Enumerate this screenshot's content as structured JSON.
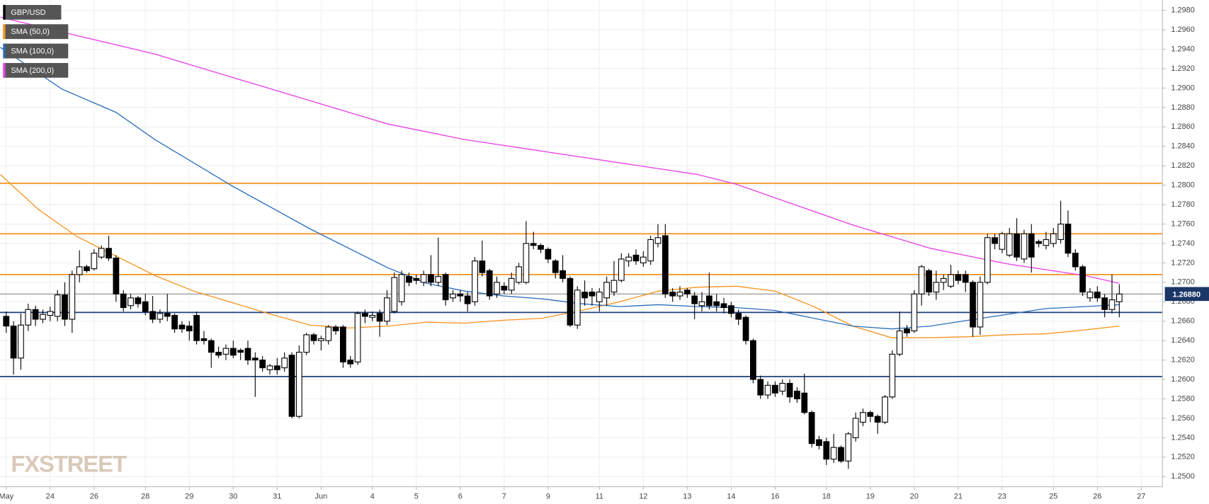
{
  "chart_data": {
    "type": "candlestick",
    "series_name": "GBP/USD",
    "up_color": "#ffffff",
    "down_color": "#000000",
    "open": [
      1.2665,
      1.2655,
      1.2622,
      1.2656,
      1.2672,
      1.2662,
      1.2666,
      1.2665,
      1.2687,
      1.2662,
      1.2708,
      1.2716,
      1.2714,
      1.2726,
      1.2735,
      1.2725,
      1.2688,
      1.2676,
      1.2684,
      1.268,
      1.267,
      1.2662,
      1.2668,
      1.2666,
      1.2656,
      1.2655,
      1.2666,
      1.2642,
      1.264,
      1.2628,
      1.2626,
      1.2632,
      1.263,
      1.2632,
      1.2622,
      1.262,
      1.261,
      1.2614,
      1.2612,
      1.2625,
      1.2562,
      1.2628,
      1.2646,
      1.264,
      1.264,
      1.2654,
      1.2654,
      1.262,
      1.2618,
      1.2668,
      1.2664,
      1.2668,
      1.266,
      1.267,
      1.268,
      1.2706,
      1.2704,
      1.27,
      1.2708,
      1.27,
      1.2708,
      1.2684,
      1.2688,
      1.2686,
      1.268,
      1.2722,
      1.2712,
      1.2688,
      1.2696,
      1.2692,
      1.27,
      1.27,
      1.274,
      1.2738,
      1.2734,
      1.2722,
      1.2712,
      1.2704,
      1.2656,
      1.269,
      1.269,
      1.268,
      1.2684,
      1.269,
      1.2702,
      1.2722,
      1.2728,
      1.272,
      1.2722,
      1.274,
      1.2748,
      1.269,
      1.2686,
      1.2692,
      1.2686,
      1.2676,
      1.2686,
      1.268,
      1.2678,
      1.2676,
      1.2668,
      1.2664,
      1.264,
      1.26,
      1.2584,
      1.2594,
      1.2588,
      1.2596,
      1.2588,
      1.2586,
      1.2566,
      1.2538,
      1.2536,
      1.2518,
      1.253,
      1.2516,
      1.254,
      1.2556,
      1.2566,
      1.2562,
      1.2556,
      1.2582,
      1.2626,
      1.2652,
      1.265,
      1.2688,
      1.2712,
      1.269,
      1.27,
      1.2696,
      1.2708,
      1.2708,
      1.27,
      1.2654,
      1.27,
      1.2746,
      1.2734,
      1.2728,
      1.275,
      1.2724,
      1.275,
      1.2742,
      1.2738,
      1.274,
      1.2744,
      1.276,
      1.273,
      1.2716,
      1.2684,
      1.269,
      1.2684,
      1.2672,
      1.268
    ],
    "high": [
      1.267,
      1.266,
      1.2668,
      1.2678,
      1.2676,
      1.2672,
      1.2675,
      1.2692,
      1.27,
      1.2712,
      1.2733,
      1.2718,
      1.2734,
      1.2738,
      1.2748,
      1.2728,
      1.2692,
      1.2688,
      1.2686,
      1.2688,
      1.2686,
      1.2672,
      1.2688,
      1.2668,
      1.266,
      1.266,
      1.267,
      1.265,
      1.2642,
      1.2634,
      1.2636,
      1.264,
      1.2632,
      1.264,
      1.2628,
      1.2624,
      1.2616,
      1.2622,
      1.2628,
      1.2628,
      1.2635,
      1.2648,
      1.2648,
      1.2645,
      1.2656,
      1.2656,
      1.2656,
      1.2624,
      1.267,
      1.2672,
      1.267,
      1.2672,
      1.2692,
      1.271,
      1.2712,
      1.271,
      1.2708,
      1.2712,
      1.2728,
      1.2746,
      1.271,
      1.2692,
      1.2692,
      1.269,
      1.2726,
      1.2743,
      1.2714,
      1.2706,
      1.27,
      1.271,
      1.272,
      1.2763,
      1.2752,
      1.274,
      1.2736,
      1.2724,
      1.2728,
      1.2706,
      1.2696,
      1.2702,
      1.2694,
      1.2694,
      1.2706,
      1.2722,
      1.273,
      1.273,
      1.2734,
      1.2732,
      1.2748,
      1.276,
      1.276,
      1.2694,
      1.2696,
      1.2694,
      1.269,
      1.269,
      1.271,
      1.2688,
      1.2684,
      1.268,
      1.2672,
      1.2666,
      1.2642,
      1.2604,
      1.2598,
      1.2598,
      1.26,
      1.26,
      1.2592,
      1.2606,
      1.2568,
      1.2542,
      1.254,
      1.2544,
      1.2532,
      1.2546,
      1.2566,
      1.257,
      1.2568,
      1.2564,
      1.2584,
      1.263,
      1.267,
      1.2656,
      1.2692,
      1.2718,
      1.2714,
      1.2712,
      1.2708,
      1.2718,
      1.2712,
      1.2712,
      1.2702,
      1.2706,
      1.275,
      1.275,
      1.2752,
      1.2756,
      1.2766,
      1.2754,
      1.276,
      1.2744,
      1.2752,
      1.2756,
      1.2784,
      1.2774,
      1.2734,
      1.2718,
      1.2694,
      1.2696,
      1.2688,
      1.2708,
      1.2698
    ],
    "low": [
      1.2648,
      1.2605,
      1.261,
      1.265,
      1.2655,
      1.2658,
      1.266,
      1.266,
      1.2655,
      1.2648,
      1.27,
      1.271,
      1.2712,
      1.2724,
      1.2722,
      1.268,
      1.267,
      1.2672,
      1.2674,
      1.2666,
      1.2658,
      1.2658,
      1.266,
      1.2648,
      1.2648,
      1.264,
      1.2636,
      1.2636,
      1.2612,
      1.2622,
      1.262,
      1.2622,
      1.262,
      1.2615,
      1.2582,
      1.2608,
      1.2605,
      1.2605,
      1.2608,
      1.256,
      1.256,
      1.2625,
      1.2636,
      1.263,
      1.2636,
      1.2646,
      1.2612,
      1.2612,
      1.2615,
      1.2658,
      1.266,
      1.2644,
      1.2656,
      1.2668,
      1.2676,
      1.2696,
      1.2698,
      1.2696,
      1.2696,
      1.2696,
      1.2676,
      1.268,
      1.268,
      1.267,
      1.2676,
      1.2706,
      1.2682,
      1.2684,
      1.2688,
      1.2688,
      1.2698,
      1.2698,
      1.2734,
      1.273,
      1.272,
      1.2704,
      1.27,
      1.2654,
      1.2652,
      1.2676,
      1.2676,
      1.267,
      1.2676,
      1.2686,
      1.27,
      1.2716,
      1.2718,
      1.2716,
      1.2718,
      1.2736,
      1.2684,
      1.268,
      1.2682,
      1.2684,
      1.2662,
      1.267,
      1.2672,
      1.267,
      1.2668,
      1.2664,
      1.2656,
      1.2636,
      1.2596,
      1.258,
      1.258,
      1.2582,
      1.2584,
      1.2576,
      1.2576,
      1.2564,
      1.253,
      1.2528,
      1.2512,
      1.2514,
      1.2514,
      1.2508,
      1.2536,
      1.2552,
      1.2556,
      1.2544,
      1.2554,
      1.258,
      1.2624,
      1.2644,
      1.2648,
      1.2676,
      1.2686,
      1.2682,
      1.2692,
      1.2694,
      1.2698,
      1.269,
      1.2644,
      1.2646,
      1.2698,
      1.2734,
      1.273,
      1.2726,
      1.2722,
      1.272,
      1.271,
      1.2736,
      1.2734,
      1.2736,
      1.274,
      1.2726,
      1.2712,
      1.2686,
      1.268,
      1.268,
      1.2664,
      1.2668,
      1.2664
    ],
    "close": [
      1.2655,
      1.2622,
      1.2656,
      1.2672,
      1.2662,
      1.2667,
      1.267,
      1.2687,
      1.2662,
      1.2708,
      1.2716,
      1.2712,
      1.273,
      1.2735,
      1.2725,
      1.2688,
      1.2674,
      1.2684,
      1.2678,
      1.267,
      1.2662,
      1.2668,
      1.2665,
      1.2652,
      1.2652,
      1.265,
      1.264,
      1.264,
      1.2628,
      1.2625,
      1.2632,
      1.2625,
      1.2628,
      1.262,
      1.262,
      1.2612,
      1.2614,
      1.261,
      1.2622,
      1.2562,
      1.2628,
      1.2646,
      1.264,
      1.2642,
      1.2654,
      1.265,
      1.2618,
      1.2616,
      1.2668,
      1.2665,
      1.2666,
      1.266,
      1.2684,
      1.2705,
      1.2708,
      1.27,
      1.2702,
      1.2708,
      1.27,
      1.2706,
      1.2682,
      1.2688,
      1.2686,
      1.2678,
      1.2722,
      1.271,
      1.2686,
      1.27,
      1.2692,
      1.2704,
      1.2716,
      1.274,
      1.2738,
      1.2734,
      1.2724,
      1.271,
      1.2704,
      1.2656,
      1.2692,
      1.2684,
      1.2686,
      1.269,
      1.27,
      1.2702,
      1.2724,
      1.2726,
      1.2722,
      1.2726,
      1.2744,
      1.2746,
      1.2688,
      1.2686,
      1.269,
      1.2688,
      1.2678,
      1.268,
      1.2676,
      1.2676,
      1.2674,
      1.2668,
      1.2662,
      1.264,
      1.26,
      1.2584,
      1.2594,
      1.2586,
      1.2596,
      1.2582,
      1.258,
      1.2566,
      1.2534,
      1.2532,
      1.2518,
      1.253,
      1.2516,
      1.2544,
      1.256,
      1.2566,
      1.2562,
      1.2556,
      1.2582,
      1.2626,
      1.265,
      1.2648,
      1.2688,
      1.2716,
      1.269,
      1.27,
      1.2704,
      1.2708,
      1.2702,
      1.27,
      1.2654,
      1.27,
      1.2746,
      1.274,
      1.275,
      1.275,
      1.2726,
      1.275,
      1.2726,
      1.274,
      1.2744,
      1.275,
      1.276,
      1.273,
      1.2716,
      1.269,
      1.269,
      1.2684,
      1.2672,
      1.2682,
      1.2688
    ],
    "overlays": [
      {
        "name": "SMA (50,0)",
        "color": "#f7931e",
        "x": [
          -0.8,
          4.4,
          9.7,
          15,
          20.3,
          25.6,
          30.9,
          36.2,
          41.5,
          46.8,
          52.1,
          57.4,
          62.6,
          67.9,
          73.2,
          78.5,
          83.8,
          89.1,
          94.4,
          99.7,
          105,
          110.3,
          115.6,
          120.9,
          126.2,
          131.4,
          136.7,
          142,
          147.3,
          152
        ],
        "values": [
          1.2811,
          1.2775,
          1.2747,
          1.2727,
          1.2707,
          1.2691,
          1.2679,
          1.2667,
          1.2656,
          1.2653,
          1.2655,
          1.2659,
          1.2658,
          1.2661,
          1.2663,
          1.2671,
          1.268,
          1.2691,
          1.2695,
          1.2696,
          1.2691,
          1.2675,
          1.2655,
          1.2643,
          1.2643,
          1.2644,
          1.2646,
          1.2647,
          1.2651,
          1.2655
        ]
      },
      {
        "name": "SMA (100,0)",
        "color": "#2a6ebb",
        "x": [
          -0.8,
          7.6,
          15,
          20.3,
          30.9,
          41.5,
          52.1,
          57.4,
          62.6,
          67.9,
          73.2,
          78.5,
          83.8,
          89.1,
          94.4,
          99.7,
          105,
          110.3,
          115.6,
          120.9,
          126.2,
          131.4,
          136.7,
          142,
          147.3,
          152
        ],
        "values": [
          1.2942,
          1.2899,
          1.2875,
          1.2847,
          1.2799,
          1.2755,
          1.2715,
          1.2699,
          1.2691,
          1.2686,
          1.2683,
          1.2678,
          1.2675,
          1.2677,
          1.2675,
          1.2674,
          1.2671,
          1.2663,
          1.2655,
          1.2652,
          1.2655,
          1.2661,
          1.2667,
          1.2673,
          1.2675,
          1.2677
        ]
      },
      {
        "name": "SMA (200,0)",
        "color": "#e83ee8",
        "x": [
          -0.8,
          9.7,
          20.3,
          30.9,
          41.5,
          52.1,
          62.6,
          73.2,
          83.8,
          94.4,
          99.7,
          105,
          115.6,
          126.2,
          136.7,
          147.3,
          152
        ],
        "values": [
          1.2973,
          1.2954,
          1.2935,
          1.2911,
          1.2887,
          1.2863,
          1.2847,
          1.2835,
          1.2823,
          1.2811,
          1.2801,
          1.2787,
          1.2759,
          1.2735,
          1.2719,
          1.2707,
          1.2699
        ]
      }
    ],
    "levels": [
      {
        "value": 1.2802,
        "color": "#f7931e"
      },
      {
        "value": 1.275,
        "color": "#f7931e"
      },
      {
        "value": 1.2708,
        "color": "#f7931e"
      },
      {
        "value": 1.2669,
        "color": "#1f3f7a"
      },
      {
        "value": 1.2603,
        "color": "#1f3f7a"
      }
    ],
    "last_price": {
      "value": 1.2688,
      "label": "1.26880"
    },
    "watermark": "FXSTREET",
    "xlim": [
      -0.85,
      157.9
    ],
    "xticks": [
      {
        "value": 0,
        "label": "May"
      },
      {
        "value": 6,
        "label": "24"
      },
      {
        "value": 12,
        "label": "26"
      },
      {
        "value": 19,
        "label": "28"
      },
      {
        "value": 25,
        "label": "29"
      },
      {
        "value": 31,
        "label": "30"
      },
      {
        "value": 37,
        "label": "31"
      },
      {
        "value": 43,
        "label": "Jun"
      },
      {
        "value": 50,
        "label": "4"
      },
      {
        "value": 56,
        "label": "5"
      },
      {
        "value": 62,
        "label": "6"
      },
      {
        "value": 68,
        "label": "7"
      },
      {
        "value": 74,
        "label": "9"
      },
      {
        "value": 81,
        "label": "11"
      },
      {
        "value": 87,
        "label": "12"
      },
      {
        "value": 93,
        "label": "13"
      },
      {
        "value": 99,
        "label": "14"
      },
      {
        "value": 105,
        "label": "16"
      },
      {
        "value": 112,
        "label": "18"
      },
      {
        "value": 118,
        "label": "19"
      },
      {
        "value": 124,
        "label": "20"
      },
      {
        "value": 130,
        "label": "21"
      },
      {
        "value": 136,
        "label": "23"
      },
      {
        "value": 143,
        "label": "25"
      },
      {
        "value": 149,
        "label": "26"
      },
      {
        "value": 155,
        "label": "27"
      }
    ],
    "ylim": [
      1.24896,
      1.29904
    ],
    "yticks": [
      {
        "value": 1.25,
        "label": "1.2500"
      },
      {
        "value": 1.252,
        "label": "1.2520"
      },
      {
        "value": 1.254,
        "label": "1.2540"
      },
      {
        "value": 1.256,
        "label": "1.2560"
      },
      {
        "value": 1.258,
        "label": "1.2580"
      },
      {
        "value": 1.26,
        "label": "1.2600"
      },
      {
        "value": 1.262,
        "label": "1.2620"
      },
      {
        "value": 1.264,
        "label": "1.2640"
      },
      {
        "value": 1.266,
        "label": "1.2660"
      },
      {
        "value": 1.268,
        "label": "1.2680"
      },
      {
        "value": 1.27,
        "label": "1.2700"
      },
      {
        "value": 1.272,
        "label": "1.2720"
      },
      {
        "value": 1.274,
        "label": "1.2740"
      },
      {
        "value": 1.276,
        "label": "1.2760"
      },
      {
        "value": 1.278,
        "label": "1.2780"
      },
      {
        "value": 1.28,
        "label": "1.2800"
      },
      {
        "value": 1.282,
        "label": "1.2820"
      },
      {
        "value": 1.284,
        "label": "1.2840"
      },
      {
        "value": 1.286,
        "label": "1.2860"
      },
      {
        "value": 1.288,
        "label": "1.2880"
      },
      {
        "value": 1.29,
        "label": "1.2900"
      },
      {
        "value": 1.292,
        "label": "1.2920"
      },
      {
        "value": 1.294,
        "label": "1.2940"
      },
      {
        "value": 1.296,
        "label": "1.2960"
      },
      {
        "value": 1.298,
        "label": "1.2980"
      }
    ],
    "grid": true
  }
}
